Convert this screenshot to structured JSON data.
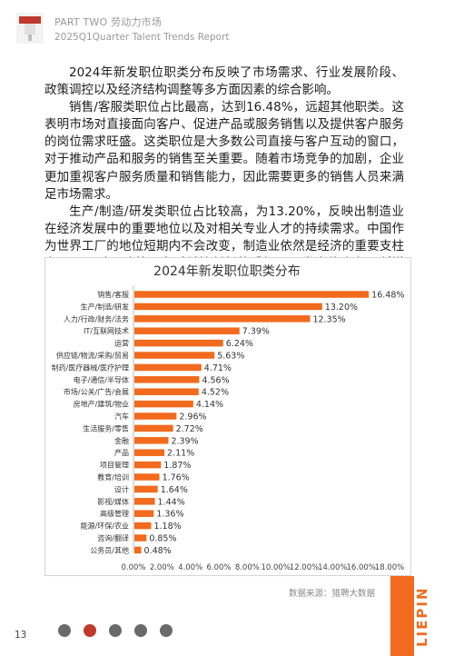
{
  "header": {
    "line1": "PART TWO 劳动力市场",
    "line2": "2025Q1Quarter Talent Trends Report"
  },
  "body": {
    "paragraphs": [
      "2024年新发职位职类分布反映了市场需求、行业发展阶段、政策调控以及经济结构调整等多方面因素的综合影响。",
      "销售/客服类职位占比最高，达到16.48%，远超其他职类。这表明市场对直接面向客户、促进产品或服务销售以及提供客户服务的岗位需求旺盛。这类职位是大多数公司直接与客户互动的窗口，对于推动产品和服务的销售至关重要。随着市场竞争的加剧，企业更加重视客户服务质量和销售能力，因此需要更多的销售人员来满足市场需求。",
      "生产/制造/研发类职位占比较高，为13.20%，反映出制造业在经济发展中的重要地位以及对相关专业人才的持续需求。中国作为世界工厂的地位短期内不会改变，制造业依然是经济的重要支柱之一。同时，随着国家对科技创新的重视，研发岗位也在不断增加。"
    ]
  },
  "chart_data": {
    "type": "bar",
    "orientation": "horizontal",
    "title": "2024年新发职位职类分布",
    "categories": [
      "销售/客服",
      "生产/制造/研发",
      "人力/行政/财务/法务",
      "IT/互联网技术",
      "运营",
      "供应链/物流/采购/贸易",
      "制药/医疗器械/医疗护理",
      "电子/通信/半导体",
      "市场/公关/广告/会展",
      "房地产/建筑/物业",
      "汽车",
      "生活服务/零售",
      "金融",
      "产品",
      "项目管理",
      "教育/培训",
      "设计",
      "影视/媒体",
      "高级管理",
      "能源/环保/农业",
      "咨询/翻译",
      "公务员/其他"
    ],
    "values": [
      16.48,
      13.2,
      12.35,
      7.39,
      6.24,
      5.63,
      4.71,
      4.56,
      4.52,
      4.14,
      2.96,
      2.72,
      2.39,
      2.11,
      1.87,
      1.76,
      1.64,
      1.44,
      1.36,
      1.18,
      0.85,
      0.48
    ],
    "value_labels": [
      "16.48%",
      "13.20%",
      "12.35%",
      "7.39%",
      "6.24%",
      "5.63%",
      "4.71%",
      "4.56%",
      "4.52%",
      "4.14%",
      "2.96%",
      "2.72%",
      "2.39%",
      "2.11%",
      "1.87%",
      "1.76%",
      "1.64%",
      "1.44%",
      "1.36%",
      "1.18%",
      "0.85%",
      "0.48%"
    ],
    "xlim": [
      0,
      18
    ],
    "xticks": [
      "0.00%",
      "2.00%",
      "4.00%",
      "6.00%",
      "8.00%",
      "10.00%",
      "12.00%",
      "14.00%",
      "16.00%",
      "18.00%"
    ],
    "bar_color": "#f26a1d",
    "grid": false
  },
  "source": "数据来源：猎聘大数据",
  "page_number": "13",
  "brand": "LIEPIN",
  "colors": {
    "accent": "#f26a1d"
  }
}
